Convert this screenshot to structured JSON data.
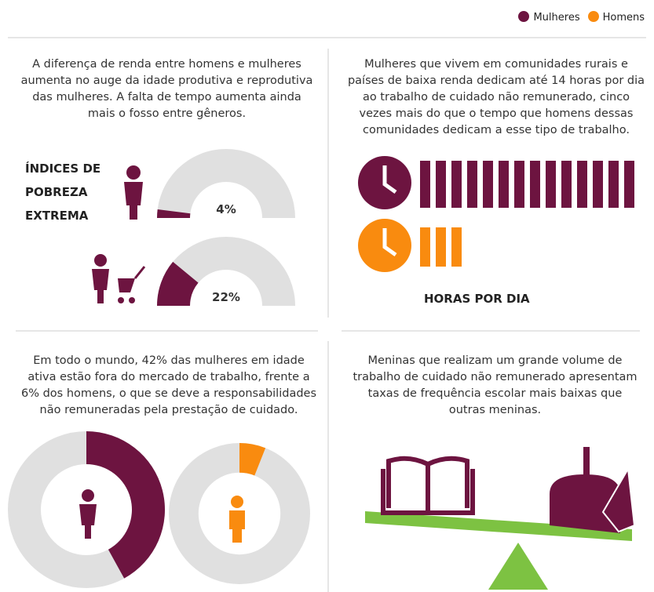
{
  "legend": [
    {
      "name": "Mulheres",
      "color": "#6d1440"
    },
    {
      "name": "Homens",
      "color": "#f98b0f"
    }
  ],
  "panels": [
    {
      "text": "A diferença de renda entre homens e mulheres aumenta no auge da idade produtiva e reprodutiva das mulheres.  A falta de tempo aumenta ainda mais o fosso entre gêneros.",
      "label_lines": [
        "ÍNDICES DE",
        "POBREZA",
        "EXTREMA"
      ],
      "gauges": [
        {
          "value": 4,
          "label": "4%"
        },
        {
          "value": 22,
          "label": "22%"
        }
      ]
    },
    {
      "text": "Mulheres que vivem em comunidades rurais e países de baixa renda dedicam até 14 horas por dia ao trabalho de cuidado não remunerado, cinco vezes mais do que o tempo que homens dessas comunidades dedicam a esse tipo de trabalho.",
      "hours": [
        {
          "series": "Mulheres",
          "value": 14
        },
        {
          "series": "Homens",
          "value": 3
        }
      ],
      "axis_label": "HORAS POR DIA"
    },
    {
      "text": "Em todo o mundo, 42% das mulheres em idade ativa estão fora do mercado de trabalho, frente a 6% dos homens, o que se deve a responsabilidades não remuneradas pela prestação de cuidado.",
      "donuts": [
        {
          "series": "Mulheres",
          "value": 42
        },
        {
          "series": "Homens",
          "value": 6
        }
      ]
    },
    {
      "text": "Meninas que realizam um grande volume de trabalho de cuidado não remunerado apresentam taxas de frequência escolar mais baixas que outras meninas."
    }
  ]
}
